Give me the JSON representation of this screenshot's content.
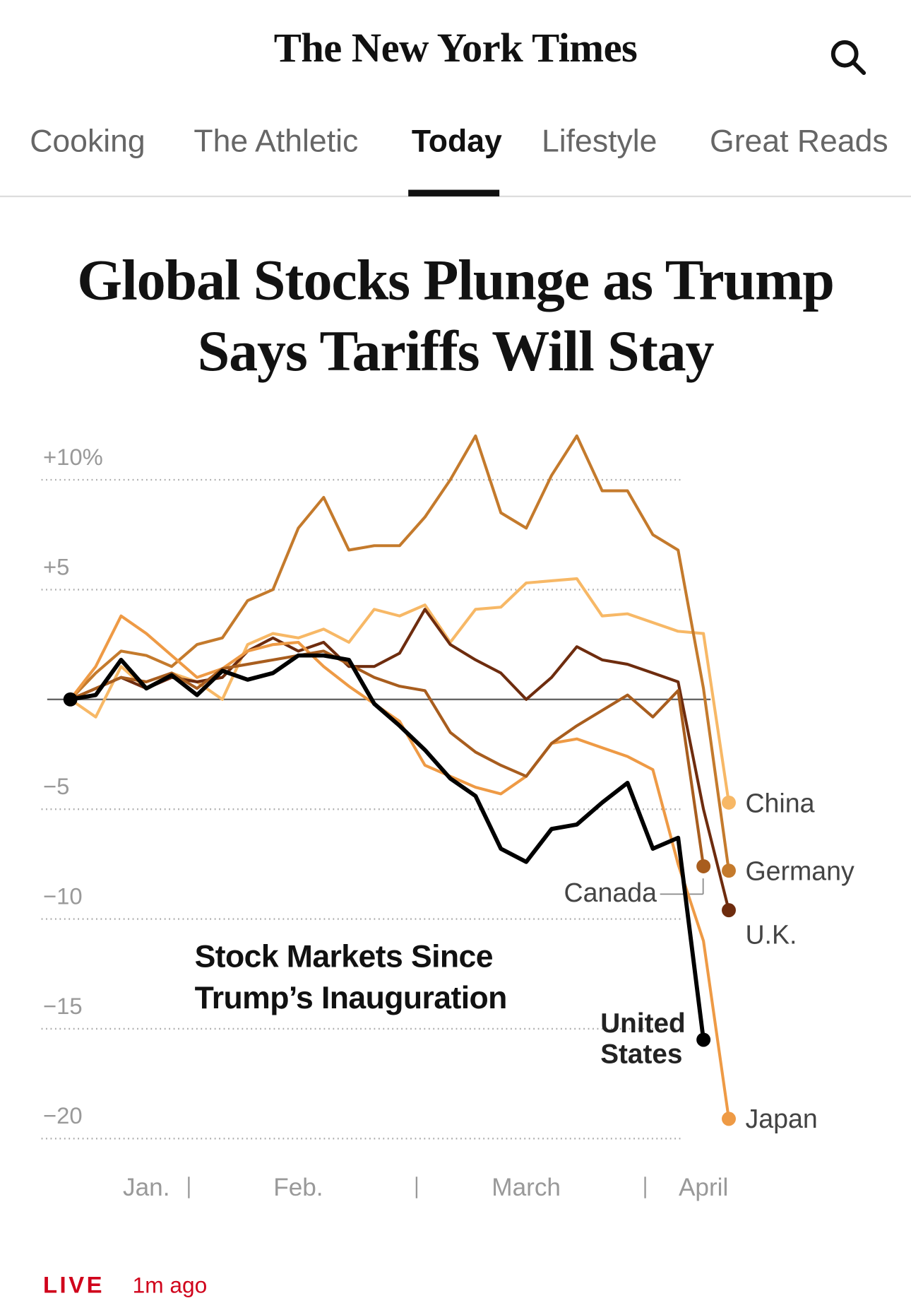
{
  "header": {
    "logo": "The New York Times"
  },
  "nav": [
    "Cooking",
    "The Athletic",
    "Today",
    "Lifestyle",
    "Great Reads"
  ],
  "headline": "Global Stocks Plunge as Trump Says Tariffs Will Stay",
  "chart_data": {
    "type": "line",
    "annotation": "Stock Markets Since Trump’s Inauguration",
    "categories": [
      null,
      null,
      null,
      "Jan.",
      null,
      null,
      null,
      null,
      null,
      "Feb.",
      null,
      null,
      null,
      null,
      null,
      null,
      null,
      null,
      "March",
      null,
      null,
      null,
      null,
      null,
      null,
      "April",
      null
    ],
    "ylim": [
      -20,
      12
    ],
    "yticks": [
      {
        "value": 10,
        "label": "+10%"
      },
      {
        "value": 5,
        "label": "+5"
      },
      {
        "value": -5,
        "label": "−5"
      },
      {
        "value": -10,
        "label": "−10"
      },
      {
        "value": -15,
        "label": "−15"
      },
      {
        "value": -20,
        "label": "−20"
      }
    ],
    "grid": true,
    "series": [
      {
        "name": "China",
        "color": "#f7b866",
        "values": [
          0,
          -0.8,
          1.5,
          0.5,
          1.2,
          0.8,
          0,
          2.5,
          3.0,
          2.8,
          3.2,
          2.6,
          4.1,
          3.8,
          4.3,
          2.6,
          4.1,
          4.2,
          5.3,
          5.4,
          5.5,
          3.8,
          3.9,
          3.5,
          3.1,
          3.0,
          -4.7
        ]
      },
      {
        "name": "Germany",
        "color": "#c47a2c",
        "values": [
          0,
          1.2,
          2.2,
          2.0,
          1.5,
          2.5,
          2.8,
          4.5,
          5.0,
          7.8,
          9.2,
          6.8,
          7.0,
          7.0,
          8.3,
          10.0,
          12.0,
          8.5,
          7.8,
          10.2,
          12.0,
          9.5,
          9.5,
          7.5,
          6.8,
          0.5,
          -7.8
        ]
      },
      {
        "name": "U.K.",
        "color": "#6e2c0e",
        "values": [
          0,
          0.5,
          1.0,
          0.5,
          1.0,
          0.8,
          1.0,
          2.2,
          2.8,
          2.2,
          2.6,
          1.5,
          1.5,
          2.1,
          4.1,
          2.5,
          1.8,
          1.2,
          0,
          1.0,
          2.4,
          1.8,
          1.6,
          1.2,
          0.8,
          -5.0,
          -9.6
        ]
      },
      {
        "name": "Japan",
        "color": "#ee9a45",
        "values": [
          0,
          1.5,
          3.8,
          3.0,
          2.0,
          1.0,
          1.4,
          2.2,
          2.5,
          2.6,
          1.5,
          0.6,
          -0.2,
          -1.0,
          -3.0,
          -3.5,
          -4.0,
          -4.3,
          -3.5,
          -2.0,
          -1.8,
          -2.2,
          -2.6,
          -3.2,
          -7.5,
          -11.0,
          -19.1
        ]
      },
      {
        "name": "Canada",
        "color": "#a85d1e",
        "values": [
          0,
          0.5,
          1.0,
          0.8,
          1.2,
          0.5,
          1.4,
          1.6,
          1.8,
          2.0,
          2.2,
          1.6,
          1.0,
          0.6,
          0.4,
          -1.5,
          -2.4,
          -3.0,
          -3.5,
          -2.0,
          -1.2,
          -0.5,
          0.2,
          -0.8,
          0.4,
          -7.6,
          null
        ]
      },
      {
        "name": "United States",
        "color": "#000000",
        "values": [
          0,
          0.2,
          1.8,
          0.5,
          1.1,
          0.2,
          1.3,
          0.9,
          1.2,
          2.0,
          2.0,
          1.8,
          -0.2,
          -1.2,
          -2.3,
          -3.6,
          -4.4,
          -6.8,
          -7.4,
          -5.9,
          -5.7,
          -4.7,
          -3.8,
          -6.8,
          -6.3,
          -15.5,
          null
        ]
      }
    ]
  },
  "footer": {
    "live": "LIVE",
    "time": "1m ago"
  }
}
